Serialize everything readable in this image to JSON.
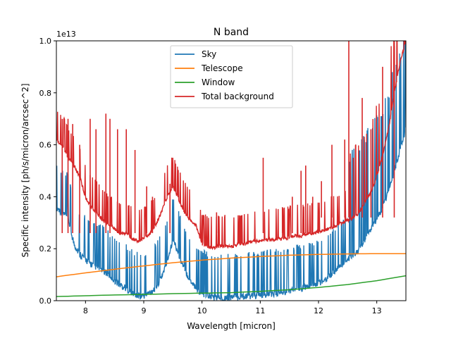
{
  "chart_data": {
    "type": "line",
    "title": "N band",
    "xlabel": "Wavelength [micron]",
    "ylabel": "Specific intensity [ph/s/micron/arcsec^2]",
    "y_offset_label": "1e13",
    "xlim": [
      7.5,
      13.5
    ],
    "ylim": [
      0.0,
      1.0
    ],
    "y_multiplier": 10000000000000.0,
    "xticks": [
      8,
      9,
      10,
      11,
      12,
      13
    ],
    "yticks": [
      0.0,
      0.2,
      0.4,
      0.6,
      0.8,
      1.0
    ],
    "xtick_labels": [
      "8",
      "9",
      "10",
      "11",
      "12",
      "13"
    ],
    "ytick_labels": [
      "0.0",
      "0.2",
      "0.4",
      "0.6",
      "0.8",
      "1.0"
    ],
    "grid": false,
    "legend_position": "top-center",
    "series": [
      {
        "name": "Sky",
        "color": "#1f77b4",
        "x": [
          7.5,
          7.6,
          7.7,
          7.8,
          7.9,
          8.0,
          8.1,
          8.2,
          8.3,
          8.4,
          8.5,
          8.6,
          8.7,
          8.8,
          8.9,
          9.0,
          9.1,
          9.2,
          9.3,
          9.4,
          9.5,
          9.6,
          9.7,
          9.8,
          9.9,
          10.0,
          10.1,
          10.2,
          10.3,
          10.4,
          10.5,
          10.6,
          10.7,
          10.8,
          10.9,
          11.0,
          11.1,
          11.2,
          11.3,
          11.4,
          11.5,
          11.6,
          11.7,
          11.8,
          11.9,
          12.0,
          12.1,
          12.2,
          12.3,
          12.4,
          12.5,
          12.6,
          12.7,
          12.8,
          12.9,
          13.0,
          13.1,
          13.2,
          13.3,
          13.4,
          13.5
        ],
        "y": [
          0.36,
          0.34,
          0.32,
          0.22,
          0.18,
          0.16,
          0.14,
          0.13,
          0.12,
          0.1,
          0.08,
          0.06,
          0.05,
          0.03,
          0.02,
          0.02,
          0.03,
          0.05,
          0.09,
          0.15,
          0.24,
          0.18,
          0.12,
          0.08,
          0.05,
          0.03,
          0.02,
          0.015,
          0.012,
          0.012,
          0.015,
          0.015,
          0.018,
          0.02,
          0.02,
          0.022,
          0.025,
          0.03,
          0.03,
          0.035,
          0.04,
          0.045,
          0.05,
          0.055,
          0.06,
          0.07,
          0.08,
          0.1,
          0.12,
          0.14,
          0.16,
          0.18,
          0.2,
          0.24,
          0.28,
          0.32,
          0.36,
          0.42,
          0.5,
          0.58,
          0.66
        ]
      },
      {
        "name": "Telescope",
        "color": "#ff7f0e",
        "x": [
          7.5,
          8.0,
          8.5,
          9.0,
          9.5,
          10.0,
          10.5,
          11.0,
          11.5,
          12.0,
          12.5,
          13.0,
          13.5
        ],
        "y": [
          0.092,
          0.107,
          0.121,
          0.134,
          0.146,
          0.156,
          0.164,
          0.17,
          0.175,
          0.178,
          0.18,
          0.181,
          0.181
        ]
      },
      {
        "name": "Window",
        "color": "#2ca02c",
        "x": [
          7.5,
          8.0,
          8.5,
          9.0,
          9.5,
          10.0,
          10.5,
          11.0,
          11.5,
          12.0,
          12.5,
          13.0,
          13.5
        ],
        "y": [
          0.016,
          0.019,
          0.022,
          0.024,
          0.027,
          0.029,
          0.031,
          0.036,
          0.042,
          0.051,
          0.062,
          0.077,
          0.096
        ]
      },
      {
        "name": "Total background",
        "color": "#d62728",
        "x": [
          7.5,
          7.6,
          7.7,
          7.8,
          7.9,
          8.0,
          8.1,
          8.2,
          8.3,
          8.4,
          8.5,
          8.6,
          8.7,
          8.8,
          8.9,
          9.0,
          9.1,
          9.2,
          9.3,
          9.4,
          9.5,
          9.6,
          9.7,
          9.8,
          9.9,
          10.0,
          10.1,
          10.2,
          10.3,
          10.4,
          10.5,
          10.6,
          10.7,
          10.8,
          10.9,
          11.0,
          11.1,
          11.2,
          11.3,
          11.4,
          11.5,
          11.6,
          11.7,
          11.8,
          11.9,
          12.0,
          12.1,
          12.2,
          12.3,
          12.4,
          12.5,
          12.6,
          12.7,
          12.8,
          12.9,
          13.0,
          13.1,
          13.2,
          13.3,
          13.4,
          13.5
        ],
        "y": [
          0.62,
          0.6,
          0.55,
          0.52,
          0.48,
          0.4,
          0.36,
          0.34,
          0.31,
          0.29,
          0.28,
          0.26,
          0.26,
          0.24,
          0.23,
          0.24,
          0.26,
          0.29,
          0.34,
          0.4,
          0.44,
          0.39,
          0.34,
          0.31,
          0.29,
          0.22,
          0.21,
          0.205,
          0.21,
          0.21,
          0.21,
          0.215,
          0.22,
          0.225,
          0.23,
          0.23,
          0.235,
          0.235,
          0.24,
          0.24,
          0.245,
          0.25,
          0.25,
          0.255,
          0.26,
          0.265,
          0.27,
          0.28,
          0.29,
          0.3,
          0.31,
          0.32,
          0.34,
          0.38,
          0.42,
          0.48,
          0.56,
          0.66,
          0.8,
          0.92,
          1.0
        ]
      }
    ],
    "spikes": [
      {
        "x": 7.6,
        "y": 0.7
      },
      {
        "x": 7.7,
        "y": 0.7
      },
      {
        "x": 7.78,
        "y": 0.68
      },
      {
        "x": 7.9,
        "y": 0.6
      },
      {
        "x": 8.08,
        "y": 0.7
      },
      {
        "x": 8.18,
        "y": 0.66
      },
      {
        "x": 8.35,
        "y": 0.72
      },
      {
        "x": 8.42,
        "y": 0.7
      },
      {
        "x": 8.55,
        "y": 0.66
      },
      {
        "x": 8.7,
        "y": 0.66
      },
      {
        "x": 8.85,
        "y": 0.58
      },
      {
        "x": 9.05,
        "y": 0.44
      },
      {
        "x": 9.15,
        "y": 0.4
      },
      {
        "x": 9.45,
        "y": 0.45
      },
      {
        "x": 10.25,
        "y": 0.34
      },
      {
        "x": 10.65,
        "y": 0.32
      },
      {
        "x": 11.05,
        "y": 0.55
      },
      {
        "x": 11.38,
        "y": 0.36
      },
      {
        "x": 11.55,
        "y": 0.4
      },
      {
        "x": 11.7,
        "y": 0.5
      },
      {
        "x": 11.78,
        "y": 0.52
      },
      {
        "x": 11.9,
        "y": 0.4
      },
      {
        "x": 12.05,
        "y": 0.46
      },
      {
        "x": 12.23,
        "y": 0.6
      },
      {
        "x": 12.45,
        "y": 0.62
      },
      {
        "x": 12.52,
        "y": 1.0
      },
      {
        "x": 12.6,
        "y": 0.55
      },
      {
        "x": 12.75,
        "y": 0.78
      },
      {
        "x": 12.9,
        "y": 0.66
      },
      {
        "x": 13.1,
        "y": 0.9
      },
      {
        "x": 13.3,
        "y": 0.98
      }
    ]
  }
}
